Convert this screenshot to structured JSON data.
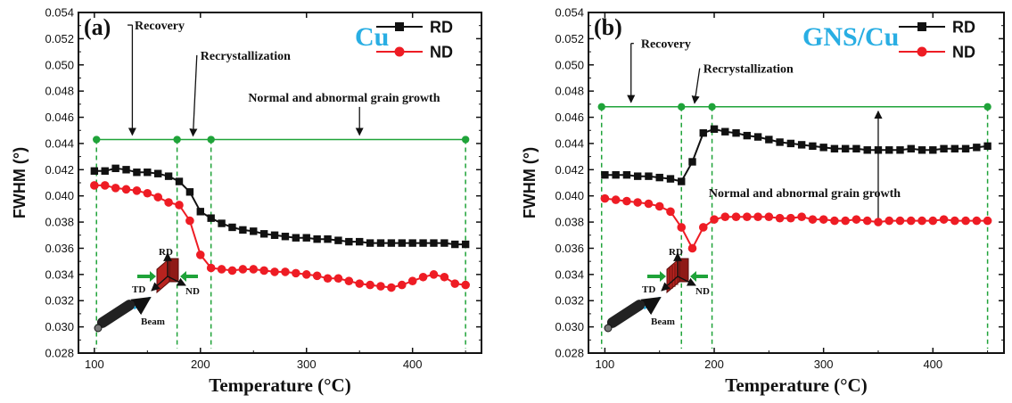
{
  "colors": {
    "RD": "#111111",
    "ND": "#ee1c24",
    "marker_line": "#1fa339",
    "material_label": "#29aee3",
    "sample": "#b8231f"
  },
  "chart_data": [
    {
      "type": "line",
      "panel_label": "(a)",
      "material_label": "Cu",
      "xlabel": "Temperature (°C)",
      "ylabel": "FWHM (°)",
      "xlim": [
        85,
        465
      ],
      "ylim": [
        0.028,
        0.054
      ],
      "xticks": [
        100,
        200,
        300,
        400
      ],
      "yticks": [
        "0.028",
        "0.030",
        "0.032",
        "0.034",
        "0.036",
        "0.038",
        "0.040",
        "0.042",
        "0.044",
        "0.046",
        "0.048",
        "0.050",
        "0.052",
        "0.054"
      ],
      "legend": [
        "RD",
        "ND"
      ],
      "legend_position": "top-right",
      "series": [
        {
          "name": "RD",
          "marker": "square",
          "x": [
            100,
            110,
            120,
            130,
            140,
            150,
            160,
            170,
            180,
            190,
            200,
            210,
            220,
            230,
            240,
            250,
            260,
            270,
            280,
            290,
            300,
            310,
            320,
            330,
            340,
            350,
            360,
            370,
            380,
            390,
            400,
            410,
            420,
            430,
            440,
            450
          ],
          "y": [
            0.0419,
            0.0419,
            0.0421,
            0.042,
            0.0418,
            0.0418,
            0.0417,
            0.0415,
            0.0411,
            0.0403,
            0.0388,
            0.0383,
            0.0379,
            0.0376,
            0.0374,
            0.0373,
            0.0371,
            0.037,
            0.0369,
            0.0368,
            0.0368,
            0.0367,
            0.0367,
            0.0366,
            0.0365,
            0.0365,
            0.0364,
            0.0364,
            0.0364,
            0.0364,
            0.0364,
            0.0364,
            0.0364,
            0.0364,
            0.0363,
            0.0363
          ]
        },
        {
          "name": "ND",
          "marker": "circle",
          "x": [
            100,
            110,
            120,
            130,
            140,
            150,
            160,
            170,
            180,
            190,
            200,
            210,
            220,
            230,
            240,
            250,
            260,
            270,
            280,
            290,
            300,
            310,
            320,
            330,
            340,
            350,
            360,
            370,
            380,
            390,
            400,
            410,
            420,
            430,
            440,
            450
          ],
          "y": [
            0.0408,
            0.0408,
            0.0406,
            0.0405,
            0.0404,
            0.0402,
            0.0399,
            0.0395,
            0.0393,
            0.0381,
            0.0355,
            0.0345,
            0.0344,
            0.0343,
            0.0344,
            0.0344,
            0.0343,
            0.0342,
            0.0342,
            0.0341,
            0.034,
            0.0339,
            0.0337,
            0.0337,
            0.0335,
            0.0333,
            0.0332,
            0.0331,
            0.033,
            0.0332,
            0.0335,
            0.0338,
            0.034,
            0.0338,
            0.0333,
            0.0332
          ]
        }
      ],
      "stage_markers_x": [
        102,
        178,
        210,
        450
      ],
      "stage_line_y": 0.0443,
      "annotations": [
        {
          "text": "Recovery",
          "x": 138,
          "y": 0.0527,
          "arrow_to": [
            140,
            0.0443
          ]
        },
        {
          "text": "Recrystallization",
          "x": 200,
          "y": 0.0504,
          "arrow_to": [
            193,
            0.0443
          ]
        },
        {
          "text": "Normal and abnormal grain growth",
          "x": 245,
          "y": 0.0472,
          "arrow_to": [
            350,
            0.0443
          ]
        }
      ],
      "inset_labels": {
        "rd": "RD",
        "td": "TD",
        "nd": "ND",
        "beam": "Beam"
      }
    },
    {
      "type": "line",
      "panel_label": "(b)",
      "material_label": "GNS/Cu",
      "xlabel": "Temperature (°C)",
      "ylabel": "FWHM (°)",
      "xlim": [
        85,
        465
      ],
      "ylim": [
        0.028,
        0.054
      ],
      "xticks": [
        100,
        200,
        300,
        400
      ],
      "yticks": [
        "0.028",
        "0.030",
        "0.032",
        "0.034",
        "0.036",
        "0.038",
        "0.040",
        "0.042",
        "0.044",
        "0.046",
        "0.048",
        "0.050",
        "0.052",
        "0.054"
      ],
      "legend": [
        "RD",
        "ND"
      ],
      "legend_position": "top-right",
      "series": [
        {
          "name": "RD",
          "marker": "square",
          "x": [
            100,
            110,
            120,
            130,
            140,
            150,
            160,
            170,
            180,
            190,
            200,
            210,
            220,
            230,
            240,
            250,
            260,
            270,
            280,
            290,
            300,
            310,
            320,
            330,
            340,
            350,
            360,
            370,
            380,
            390,
            400,
            410,
            420,
            430,
            440,
            450
          ],
          "y": [
            0.0416,
            0.0416,
            0.0416,
            0.0415,
            0.0415,
            0.0414,
            0.0413,
            0.0411,
            0.0426,
            0.0448,
            0.0451,
            0.0449,
            0.0448,
            0.0446,
            0.0445,
            0.0443,
            0.0441,
            0.044,
            0.0439,
            0.0438,
            0.0437,
            0.0436,
            0.0436,
            0.0436,
            0.0435,
            0.0435,
            0.0435,
            0.0435,
            0.0436,
            0.0435,
            0.0435,
            0.0436,
            0.0436,
            0.0436,
            0.0437,
            0.0438
          ]
        },
        {
          "name": "ND",
          "marker": "circle",
          "x": [
            100,
            110,
            120,
            130,
            140,
            150,
            160,
            170,
            180,
            190,
            200,
            210,
            220,
            230,
            240,
            250,
            260,
            270,
            280,
            290,
            300,
            310,
            320,
            330,
            340,
            350,
            360,
            370,
            380,
            390,
            400,
            410,
            420,
            430,
            440,
            450
          ],
          "y": [
            0.0398,
            0.0397,
            0.0396,
            0.0395,
            0.0394,
            0.0392,
            0.0388,
            0.0376,
            0.036,
            0.0376,
            0.0382,
            0.0384,
            0.0384,
            0.0384,
            0.0384,
            0.0384,
            0.0383,
            0.0383,
            0.0384,
            0.0382,
            0.0382,
            0.0381,
            0.0381,
            0.0382,
            0.0381,
            0.038,
            0.0381,
            0.0381,
            0.0381,
            0.0381,
            0.0381,
            0.0382,
            0.0381,
            0.0381,
            0.0381,
            0.0381
          ]
        }
      ],
      "stage_markers_x": [
        97,
        170,
        198,
        450
      ],
      "stage_line_y": 0.0468,
      "annotations": [
        {
          "text": "Recovery",
          "x": 133,
          "y": 0.0513,
          "arrow_to": [
            128,
            0.0468
          ]
        },
        {
          "text": "Recrystallization",
          "x": 190,
          "y": 0.0494,
          "arrow_to": [
            182,
            0.0468
          ]
        },
        {
          "text": "Normal and abnormal grain growth",
          "x": 195,
          "y": 0.0399,
          "arrow_to": [
            350,
            0.0468
          ]
        }
      ],
      "inset_labels": {
        "rd": "RD",
        "td": "TD",
        "nd": "ND",
        "beam": "Beam"
      }
    }
  ]
}
